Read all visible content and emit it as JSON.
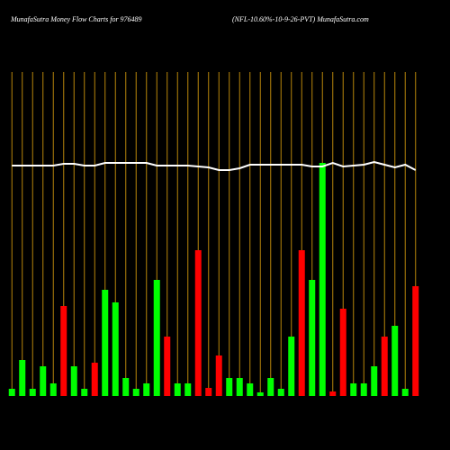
{
  "chart_data": {
    "type": "bar",
    "title": "MunafaSutra  Money Flow  Charts for 976489",
    "subtitle": "(NFL-10.60%-10-9-26-PVT) MunafaSutra.com",
    "categories": [
      null,
      null,
      null,
      null,
      null,
      null,
      null,
      null,
      null,
      null,
      null,
      null,
      null,
      null,
      null,
      null,
      null,
      null,
      null,
      null,
      null,
      null,
      null,
      null,
      null,
      null,
      null,
      null,
      null,
      null,
      null,
      null,
      null,
      null,
      null,
      null,
      null,
      null,
      null,
      null
    ],
    "values": [
      8,
      40,
      8,
      33,
      14,
      100,
      33,
      8,
      37,
      118,
      104,
      20,
      8,
      14,
      129,
      66,
      14,
      14,
      162,
      9,
      45,
      20,
      20,
      14,
      4,
      20,
      8,
      66,
      162,
      129,
      259,
      5,
      97,
      14,
      14,
      33,
      66,
      78,
      8,
      122
    ],
    "colors": [
      "#00ff00",
      "#00ff00",
      "#00ff00",
      "#00ff00",
      "#00ff00",
      "#ff0000",
      "#00ff00",
      "#00ff00",
      "#ff0000",
      "#00ff00",
      "#00ff00",
      "#00ff00",
      "#00ff00",
      "#00ff00",
      "#00ff00",
      "#ff0000",
      "#00ff00",
      "#00ff00",
      "#ff0000",
      "#ff0000",
      "#ff0000",
      "#00ff00",
      "#00ff00",
      "#00ff00",
      "#00ff00",
      "#00ff00",
      "#00ff00",
      "#00ff00",
      "#ff0000",
      "#00ff00",
      "#00ff00",
      "#ff0000",
      "#ff0000",
      "#00ff00",
      "#00ff00",
      "#00ff00",
      "#ff0000",
      "#00ff00",
      "#00ff00",
      "#ff0000"
    ],
    "line": {
      "color": "#ffffff",
      "values": [
        256,
        256,
        256,
        256,
        256,
        258,
        258,
        256,
        256,
        259,
        259,
        259,
        259,
        259,
        256,
        256,
        256,
        256,
        255,
        254,
        251,
        251,
        253,
        257,
        257,
        257,
        257,
        257,
        257,
        255,
        255,
        259,
        255,
        256,
        257,
        260,
        257,
        254,
        257,
        251
      ]
    },
    "ylim": [
      0,
      270
    ],
    "grid_color": "#b8860b"
  }
}
